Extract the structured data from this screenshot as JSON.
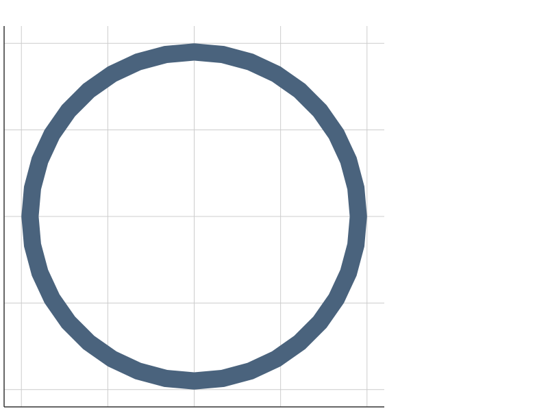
{
  "colors": {
    "ring": "#4a637d",
    "grid": "#cccccc",
    "axis": "#333333",
    "background": "#ffffff"
  },
  "chart_data": {
    "type": "area",
    "title": "",
    "xlabel": "",
    "ylabel": "",
    "grid": true,
    "legend": "none",
    "xlim": [
      -1.1,
      1.1
    ],
    "ylim": [
      -1.1,
      1.1
    ],
    "x_gridlines": [
      -1,
      -0.5,
      0,
      0.5,
      1
    ],
    "y_gridlines": [
      -1,
      -0.5,
      0,
      0.5,
      1
    ],
    "series": [
      {
        "shape": "ring",
        "center": [
          0,
          0
        ],
        "outer_radius": 1.0,
        "inner_radius": 0.9,
        "segments": 36
      }
    ]
  }
}
